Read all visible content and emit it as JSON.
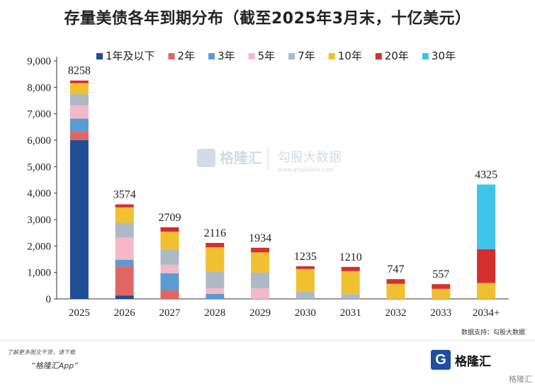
{
  "title": "存量美债各年到期分布（截至2025年3月末，十亿美元）",
  "source": "数据支持：勾股大数据",
  "watermark_text": [
    "格隆汇",
    "勾股大数据",
    "www.gogudata.com"
  ],
  "footer": {
    "note": "了解更多图文干货，请下载",
    "app": "“格隆汇App”",
    "logo_letter": "G",
    "logo_text": "格隆汇",
    "corner": "格隆汇"
  },
  "colors": {
    "1年及以下": "#1f4e96",
    "2年": "#e06666",
    "3年": "#5b9bd5",
    "5年": "#f4b8c9",
    "7年": "#adb9c4",
    "10年": "#f0c030",
    "20年": "#d32f2f",
    "30年": "#3fc4ec"
  },
  "chart_data": {
    "type": "bar",
    "stacked": true,
    "categories": [
      "2025",
      "2026",
      "2027",
      "2028",
      "2029",
      "2030",
      "2031",
      "2032",
      "2033",
      "2034+"
    ],
    "totals": [
      8258,
      3574,
      2709,
      2116,
      1934,
      1235,
      1210,
      747,
      557,
      4325
    ],
    "totals_labels": [
      "8258",
      "3574",
      "2709",
      "2116",
      "1934",
      "1235",
      "1210",
      "747",
      "557",
      "4325"
    ],
    "series": [
      {
        "name": "1年及以下",
        "values": [
          6000,
          130,
          0,
          0,
          0,
          0,
          0,
          0,
          0,
          0
        ]
      },
      {
        "name": "2年",
        "values": [
          320,
          1100,
          320,
          0,
          0,
          0,
          0,
          0,
          0,
          0
        ]
      },
      {
        "name": "3年",
        "values": [
          500,
          250,
          650,
          190,
          0,
          0,
          0,
          0,
          0,
          0
        ]
      },
      {
        "name": "5年",
        "values": [
          500,
          850,
          320,
          210,
          400,
          0,
          0,
          0,
          0,
          0
        ]
      },
      {
        "name": "7年",
        "values": [
          420,
          550,
          580,
          620,
          600,
          280,
          180,
          0,
          0,
          0
        ]
      },
      {
        "name": "10年",
        "values": [
          420,
          580,
          670,
          930,
          760,
          850,
          870,
          570,
          380,
          600
        ]
      },
      {
        "name": "20年",
        "values": [
          98,
          114,
          169,
          166,
          174,
          105,
          160,
          177,
          177,
          1280
        ]
      },
      {
        "name": "30年",
        "values": [
          0,
          0,
          0,
          0,
          0,
          0,
          0,
          0,
          0,
          2445
        ]
      }
    ],
    "ylim": [
      0,
      9000
    ],
    "yticks": [
      0,
      1000,
      2000,
      3000,
      4000,
      5000,
      6000,
      7000,
      8000,
      9000
    ],
    "ytick_labels": [
      "0",
      "1,000",
      "2,000",
      "3,000",
      "4,000",
      "5,000",
      "6,000",
      "7,000",
      "8,000",
      "9,000"
    ],
    "legend_position": "top",
    "grid": false
  }
}
